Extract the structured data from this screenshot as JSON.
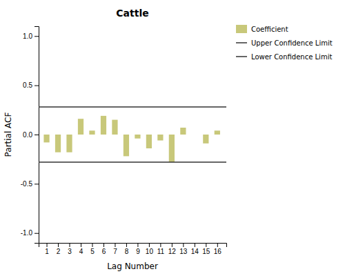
{
  "chart_data": {
    "type": "bar",
    "title": "Cattle",
    "xlabel": "Lag Number",
    "ylabel": "Partial ACF",
    "x": [
      1,
      2,
      3,
      4,
      5,
      6,
      7,
      8,
      9,
      10,
      11,
      12,
      13,
      14,
      15,
      16
    ],
    "series": [
      {
        "name": "Coefficient",
        "color": "#c8c87a",
        "values": [
          -0.08,
          -0.18,
          -0.18,
          0.16,
          0.04,
          0.19,
          0.15,
          -0.22,
          -0.04,
          -0.14,
          -0.06,
          -0.28,
          0.07,
          0.0,
          -0.09,
          0.04
        ]
      }
    ],
    "reference_lines": [
      {
        "name": "Upper Confidence Limit",
        "value": 0.28,
        "color": "#333333"
      },
      {
        "name": "Lower Confidence Limit",
        "value": -0.28,
        "color": "#333333"
      }
    ],
    "xlim": [
      0.3,
      16.8
    ],
    "xticks": [
      1,
      2,
      3,
      4,
      5,
      6,
      7,
      8,
      9,
      10,
      11,
      12,
      13,
      14,
      15,
      16
    ],
    "ylim": [
      -1.1,
      1.1
    ],
    "yticks": [
      {
        "value": -1.0,
        "label": "-1.0"
      },
      {
        "value": -0.5,
        "label": "-0.5"
      },
      {
        "value": 0.0,
        "label": "0.0"
      },
      {
        "value": 0.5,
        "label": "0.5"
      },
      {
        "value": 1.0,
        "label": "1.0"
      }
    ],
    "grid": false,
    "legend": "right"
  }
}
